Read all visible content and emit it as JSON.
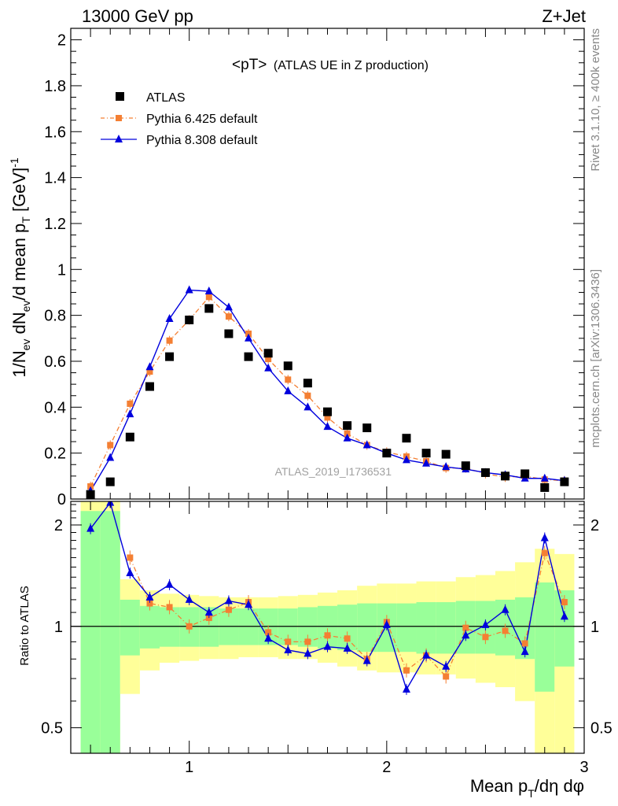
{
  "header": {
    "left": "13000 GeV pp",
    "right": "Z+Jet"
  },
  "side_labels": {
    "rivet": "Rivet 3.1.10, ≥ 400k events",
    "mcplots": "mcplots.cern.ch [arXiv:1306.3436]"
  },
  "chart_data": {
    "type": "scatter",
    "title_main": "<pT>",
    "title_sub": "(ATLAS UE in Z production)",
    "watermark": "ATLAS_2019_I1736531",
    "xlabel": "Mean p_T/dη dφ",
    "xlabel_parts": {
      "base": "Mean p",
      "sub": "T",
      "rest": "/dη dφ"
    },
    "ylabel_parts": {
      "a": "1/N",
      "a_sub": "ev",
      "b": " dN",
      "b_sub": "ev",
      "c": "/d mean p",
      "c_sub": "T",
      "d": " [GeV]",
      "d_sup": "-1"
    },
    "ratio_ylabel": "Ratio to ATLAS",
    "xlim": [
      0.4,
      3.0
    ],
    "ylim": [
      0,
      2.05
    ],
    "ratio_ylim": [
      0.42,
      2.35
    ],
    "ratio_scale": "log",
    "x_ticks": [
      "1",
      "2",
      "3"
    ],
    "y_ticks": [
      "0",
      "0.2",
      "0.4",
      "0.6",
      "0.8",
      "1",
      "1.2",
      "1.4",
      "1.6",
      "1.8",
      "2"
    ],
    "ratio_ticks": [
      "0.5",
      "1",
      "2"
    ],
    "legend": [
      "ATLAS",
      "Pythia 6.425 default",
      "Pythia 8.308 default"
    ],
    "legend_position": "top-left",
    "series": [
      {
        "name": "ATLAS",
        "color": "#000000",
        "x": [
          0.5,
          0.6,
          0.7,
          0.8,
          0.9,
          1.0,
          1.1,
          1.2,
          1.3,
          1.4,
          1.5,
          1.6,
          1.7,
          1.8,
          1.9,
          2.0,
          2.1,
          2.2,
          2.3,
          2.4,
          2.5,
          2.6,
          2.7,
          2.8,
          2.9
        ],
        "y": [
          0.02,
          0.075,
          0.27,
          0.49,
          0.62,
          0.78,
          0.83,
          0.72,
          0.62,
          0.635,
          0.58,
          0.505,
          0.38,
          0.32,
          0.31,
          0.2,
          0.265,
          0.2,
          0.195,
          0.145,
          0.115,
          0.1,
          0.11,
          0.05,
          0.075
        ]
      },
      {
        "name": "Pythia 6.425 default",
        "color": "#f47f33",
        "x": [
          0.5,
          0.6,
          0.7,
          0.8,
          0.9,
          1.0,
          1.1,
          1.2,
          1.3,
          1.4,
          1.5,
          1.6,
          1.7,
          1.8,
          1.9,
          2.0,
          2.1,
          2.2,
          2.3,
          2.4,
          2.5,
          2.6,
          2.7,
          2.8,
          2.9
        ],
        "y": [
          0.055,
          0.235,
          0.415,
          0.555,
          0.69,
          0.78,
          0.88,
          0.795,
          0.72,
          0.61,
          0.52,
          0.45,
          0.355,
          0.285,
          0.235,
          0.205,
          0.185,
          0.165,
          0.135,
          0.135,
          0.11,
          0.095,
          0.1,
          0.085,
          0.08
        ]
      },
      {
        "name": "Pythia 8.308 default",
        "color": "#0000dd",
        "x": [
          0.5,
          0.6,
          0.7,
          0.8,
          0.9,
          1.0,
          1.1,
          1.2,
          1.3,
          1.4,
          1.5,
          1.6,
          1.7,
          1.8,
          1.9,
          2.0,
          2.1,
          2.2,
          2.3,
          2.4,
          2.5,
          2.6,
          2.7,
          2.8,
          2.9
        ],
        "y": [
          0.035,
          0.18,
          0.37,
          0.575,
          0.785,
          0.91,
          0.905,
          0.835,
          0.7,
          0.57,
          0.47,
          0.4,
          0.315,
          0.265,
          0.235,
          0.2,
          0.17,
          0.155,
          0.14,
          0.13,
          0.115,
          0.105,
          0.09,
          0.09,
          0.08
        ]
      }
    ],
    "ratio_series": [
      {
        "name": "Pythia 6.425 default",
        "x": [
          0.7,
          0.8,
          0.9,
          1.0,
          1.1,
          1.2,
          1.3,
          1.4,
          1.5,
          1.6,
          1.7,
          1.8,
          1.9,
          2.0,
          2.1,
          2.2,
          2.3,
          2.4,
          2.5,
          2.6,
          2.7,
          2.8,
          2.9
        ],
        "y": [
          1.6,
          1.17,
          1.14,
          1.0,
          1.06,
          1.12,
          1.18,
          0.96,
          0.9,
          0.9,
          0.94,
          0.92,
          0.8,
          1.03,
          0.74,
          0.82,
          0.71,
          0.99,
          0.93,
          0.97,
          0.89,
          1.65,
          1.18
        ]
      },
      {
        "name": "Pythia 8.308 default",
        "x": [
          0.5,
          0.6,
          0.7,
          0.8,
          0.9,
          1.0,
          1.1,
          1.2,
          1.3,
          1.4,
          1.5,
          1.6,
          1.7,
          1.8,
          1.9,
          2.0,
          2.1,
          2.2,
          2.3,
          2.4,
          2.5,
          2.6,
          2.7,
          2.8,
          2.9
        ],
        "y": [
          1.95,
          2.33,
          1.44,
          1.22,
          1.33,
          1.2,
          1.1,
          1.19,
          1.16,
          0.92,
          0.85,
          0.83,
          0.87,
          0.86,
          0.79,
          1.01,
          0.65,
          0.82,
          0.76,
          0.94,
          1.01,
          1.12,
          0.84,
          1.83,
          1.07
        ]
      }
    ],
    "ratio_bands": {
      "edges": [
        0.45,
        0.55,
        0.65,
        0.75,
        0.85,
        0.95,
        1.05,
        1.15,
        1.25,
        1.35,
        1.45,
        1.55,
        1.65,
        1.75,
        1.85,
        1.95,
        2.05,
        2.15,
        2.25,
        2.35,
        2.45,
        2.55,
        2.65,
        2.75,
        2.85,
        2.95
      ],
      "green_lo": [
        0.3,
        0.3,
        0.82,
        0.86,
        0.87,
        0.87,
        0.87,
        0.88,
        0.88,
        0.88,
        0.88,
        0.87,
        0.86,
        0.85,
        0.84,
        0.84,
        0.84,
        0.83,
        0.83,
        0.83,
        0.83,
        0.82,
        0.8,
        0.64,
        0.76
      ],
      "green_hi": [
        2.2,
        2.2,
        1.2,
        1.15,
        1.14,
        1.14,
        1.14,
        1.13,
        1.13,
        1.13,
        1.13,
        1.14,
        1.15,
        1.16,
        1.17,
        1.17,
        1.17,
        1.18,
        1.18,
        1.19,
        1.19,
        1.2,
        1.22,
        1.35,
        1.28
      ],
      "yellow_lo": [
        0.3,
        0.3,
        0.63,
        0.74,
        0.78,
        0.79,
        0.8,
        0.8,
        0.81,
        0.81,
        0.8,
        0.8,
        0.78,
        0.76,
        0.74,
        0.73,
        0.73,
        0.72,
        0.72,
        0.7,
        0.68,
        0.66,
        0.6,
        0.38,
        0.4
      ],
      "yellow_hi": [
        2.35,
        2.35,
        1.38,
        1.28,
        1.25,
        1.24,
        1.23,
        1.22,
        1.22,
        1.22,
        1.23,
        1.24,
        1.26,
        1.28,
        1.32,
        1.34,
        1.34,
        1.36,
        1.36,
        1.4,
        1.42,
        1.46,
        1.55,
        1.7,
        1.64
      ]
    }
  }
}
